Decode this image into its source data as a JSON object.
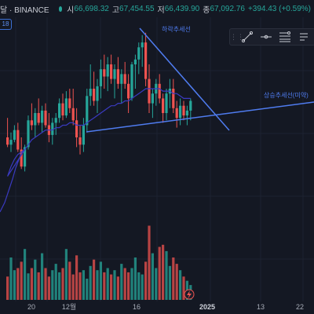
{
  "header": {
    "symbol": "달 · BINANCE",
    "open_label": "시",
    "open": "66,698.32",
    "high_label": "고",
    "high": "67,454.55",
    "low_label": "저",
    "low": "66,439.90",
    "close_label": "종",
    "close": "67,092.76",
    "change": "+394.43 (+0.59%)"
  },
  "badge": "18",
  "toolbar": {
    "icons": [
      "grip-icon",
      "trend-line-icon",
      "horizontal-ray-icon",
      "fib-retracement-icon",
      "text-icon"
    ]
  },
  "colors": {
    "up": "#26a69a",
    "down": "#ef5350",
    "ma": "#3a3ac0",
    "trend": "#4f7cf0",
    "grid": "#1d2230"
  },
  "chart_data": {
    "type": "candlestick",
    "price_range": [
      0,
      100
    ],
    "annotations": [
      {
        "label": "하락추세선"
      },
      {
        "label": "상승추세선(미약)"
      }
    ],
    "x_ticks": [
      "20",
      "12월",
      "16",
      "2025",
      "13",
      "22"
    ],
    "candles": [
      [
        50,
        58,
        46,
        47
      ],
      [
        47,
        52,
        44,
        49
      ],
      [
        49,
        55,
        48,
        53
      ],
      [
        53,
        56,
        44,
        45
      ],
      [
        45,
        50,
        37,
        38
      ],
      [
        38,
        47,
        36,
        46
      ],
      [
        46,
        59,
        45,
        57
      ],
      [
        57,
        64,
        53,
        55
      ],
      [
        55,
        62,
        50,
        60
      ],
      [
        60,
        66,
        55,
        56
      ],
      [
        56,
        63,
        52,
        61
      ],
      [
        61,
        64,
        54,
        55
      ],
      [
        55,
        60,
        48,
        51
      ],
      [
        51,
        58,
        47,
        56
      ],
      [
        56,
        60,
        51,
        58
      ],
      [
        58,
        66,
        56,
        64
      ],
      [
        64,
        68,
        57,
        59
      ],
      [
        59,
        69,
        58,
        66
      ],
      [
        66,
        70,
        60,
        62
      ],
      [
        62,
        70,
        55,
        57
      ],
      [
        57,
        62,
        46,
        50
      ],
      [
        50,
        55,
        43,
        47
      ],
      [
        47,
        58,
        44,
        55
      ],
      [
        55,
        70,
        52,
        67
      ],
      [
        67,
        80,
        63,
        70
      ],
      [
        70,
        77,
        63,
        65
      ],
      [
        65,
        74,
        60,
        71
      ],
      [
        71,
        82,
        66,
        78
      ],
      [
        78,
        84,
        70,
        75
      ],
      [
        75,
        83,
        69,
        80
      ],
      [
        80,
        84,
        72,
        74
      ],
      [
        74,
        80,
        66,
        78
      ],
      [
        78,
        83,
        70,
        72
      ],
      [
        72,
        78,
        64,
        76
      ],
      [
        76,
        81,
        70,
        72
      ],
      [
        72,
        76,
        60,
        66
      ],
      [
        66,
        81,
        65,
        80
      ],
      [
        80,
        84,
        70,
        82
      ],
      [
        82,
        89,
        76,
        87
      ],
      [
        87,
        92,
        79,
        89
      ],
      [
        89,
        93,
        71,
        74
      ],
      [
        74,
        80,
        60,
        64
      ],
      [
        64,
        70,
        58,
        68
      ],
      [
        68,
        74,
        63,
        72
      ],
      [
        72,
        76,
        64,
        66
      ],
      [
        66,
        68,
        56,
        60
      ],
      [
        60,
        70,
        57,
        68
      ],
      [
        68,
        74,
        62,
        70
      ],
      [
        70,
        74,
        60,
        62
      ],
      [
        62,
        65,
        54,
        58
      ],
      [
        58,
        66,
        55,
        63
      ],
      [
        63,
        65,
        57,
        59
      ],
      [
        59,
        63,
        55,
        61
      ],
      [
        61,
        66,
        57,
        65
      ]
    ],
    "ma": [
      34,
      38,
      41,
      43,
      44,
      45,
      47,
      49,
      50,
      51,
      52,
      53,
      53,
      53,
      54,
      54,
      55,
      55,
      56,
      56,
      55,
      55,
      55,
      56,
      57,
      58,
      59,
      60,
      61,
      62,
      63,
      63,
      64,
      64,
      65,
      65,
      66,
      67,
      68,
      69,
      70,
      70,
      70,
      70,
      70,
      69,
      69,
      69,
      68,
      68,
      67,
      66,
      66,
      66
    ],
    "volume": [
      22,
      40,
      28,
      30,
      36,
      48,
      25,
      30,
      38,
      26,
      44,
      30,
      22,
      28,
      34,
      26,
      30,
      48,
      36,
      24,
      42,
      26,
      28,
      20,
      32,
      38,
      28,
      36,
      26,
      30,
      24,
      28,
      22,
      34,
      30,
      26,
      30,
      40,
      26,
      24,
      36,
      70,
      44,
      30,
      50,
      52,
      46,
      32,
      40,
      34,
      28,
      22,
      18,
      14
    ]
  }
}
